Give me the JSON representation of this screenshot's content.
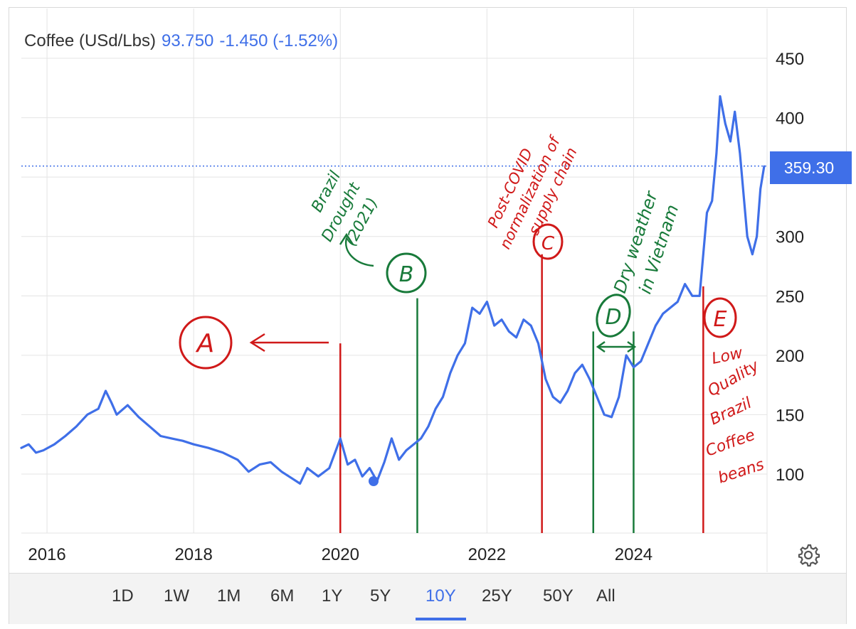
{
  "header": {
    "name": "Coffee (USd/Lbs)",
    "price": "93.750",
    "change": "-1.450 (-1.52%)"
  },
  "current_value_label": "359.30",
  "ranges": [
    {
      "label": "1D",
      "active": false
    },
    {
      "label": "1W",
      "active": false
    },
    {
      "label": "1M",
      "active": false
    },
    {
      "label": "6M",
      "active": false
    },
    {
      "label": "1Y",
      "active": false
    },
    {
      "label": "5Y",
      "active": false
    },
    {
      "label": "10Y",
      "active": true
    },
    {
      "label": "25Y",
      "active": false
    },
    {
      "label": "50Y",
      "active": false
    },
    {
      "label": "All",
      "active": false
    }
  ],
  "icons": {
    "settings": "gear-icon"
  },
  "colors": {
    "line": "#3f6fe8",
    "annotation_red": "#d01919",
    "annotation_green": "#187a3a"
  },
  "annotations": {
    "A": {
      "marker": "A"
    },
    "B": {
      "marker": "B",
      "text": [
        "Brazil",
        "Drought",
        "(2021)"
      ]
    },
    "C": {
      "marker": "C",
      "text": [
        "Post-COVID",
        "normalization of",
        "supply chain"
      ]
    },
    "D": {
      "marker": "D",
      "text": [
        "Dry weather",
        "in Vietnam"
      ]
    },
    "E": {
      "marker": "E",
      "text": [
        "Low",
        "Quality",
        "Brazil",
        "Coffee",
        "beans"
      ]
    }
  },
  "chart_data": {
    "type": "line",
    "x_ticks": [
      "2016",
      "2018",
      "2020",
      "2022",
      "2024"
    ],
    "y_ticks": [
      100,
      150,
      200,
      250,
      300,
      350,
      400,
      450
    ],
    "y_tick_labels": [
      "100",
      "150",
      "200",
      "250",
      "300",
      "",
      "400",
      "450"
    ],
    "xlim": [
      2015.65,
      2025.82
    ],
    "ylim": [
      50,
      460
    ],
    "grid": true,
    "current_value": 359.3,
    "series": [
      {
        "x": [
          2015.65,
          2015.75,
          2015.85,
          2015.95,
          2016.1,
          2016.25,
          2016.4,
          2016.55,
          2016.7,
          2016.8,
          2016.88,
          2016.95,
          2017.1,
          2017.25,
          2017.4,
          2017.55,
          2017.7,
          2017.85,
          2018.0,
          2018.2,
          2018.4,
          2018.6,
          2018.75,
          2018.9,
          2019.05,
          2019.2,
          2019.35,
          2019.45,
          2019.55,
          2019.7,
          2019.85,
          2020.0,
          2020.1,
          2020.2,
          2020.3,
          2020.4,
          2020.5,
          2020.6,
          2020.7,
          2020.8,
          2020.9,
          2021.0,
          2021.1,
          2021.2,
          2021.3,
          2021.4,
          2021.5,
          2021.6,
          2021.7,
          2021.8,
          2021.9,
          2022.0,
          2022.1,
          2022.2,
          2022.3,
          2022.4,
          2022.5,
          2022.6,
          2022.7,
          2022.8,
          2022.9,
          2023.0,
          2023.1,
          2023.2,
          2023.3,
          2023.4,
          2023.5,
          2023.6,
          2023.7,
          2023.8,
          2023.9,
          2024.0,
          2024.1,
          2024.2,
          2024.3,
          2024.4,
          2024.5,
          2024.6,
          2024.7,
          2024.8,
          2024.9,
          2025.0,
          2025.07,
          2025.13,
          2025.18,
          2025.25,
          2025.32,
          2025.38,
          2025.45,
          2025.55,
          2025.62,
          2025.68,
          2025.73,
          2025.78
        ],
        "values": [
          122,
          125,
          118,
          120,
          125,
          132,
          140,
          150,
          155,
          170,
          160,
          150,
          158,
          148,
          140,
          132,
          130,
          128,
          125,
          122,
          118,
          112,
          102,
          108,
          110,
          102,
          96,
          92,
          105,
          98,
          105,
          130,
          108,
          112,
          98,
          105,
          94,
          110,
          130,
          112,
          120,
          125,
          130,
          140,
          155,
          165,
          185,
          200,
          210,
          240,
          235,
          245,
          225,
          230,
          220,
          215,
          230,
          225,
          210,
          180,
          165,
          160,
          170,
          185,
          192,
          180,
          165,
          150,
          148,
          165,
          200,
          190,
          195,
          210,
          225,
          235,
          240,
          245,
          260,
          250,
          250,
          320,
          330,
          370,
          418,
          395,
          380,
          405,
          370,
          300,
          285,
          300,
          340,
          359
        ]
      }
    ],
    "vertical_markers": [
      {
        "x": 2020.0,
        "from": 50,
        "to": 210,
        "color": "red"
      },
      {
        "x": 2021.05,
        "from": 50,
        "to": 248,
        "color": "green"
      },
      {
        "x": 2022.75,
        "from": 50,
        "to": 285,
        "color": "red"
      },
      {
        "x": 2023.45,
        "from": 50,
        "to": 220,
        "color": "green"
      },
      {
        "x": 2024.0,
        "from": 50,
        "to": 220,
        "color": "green"
      },
      {
        "x": 2024.95,
        "from": 50,
        "to": 258,
        "color": "red"
      }
    ]
  }
}
